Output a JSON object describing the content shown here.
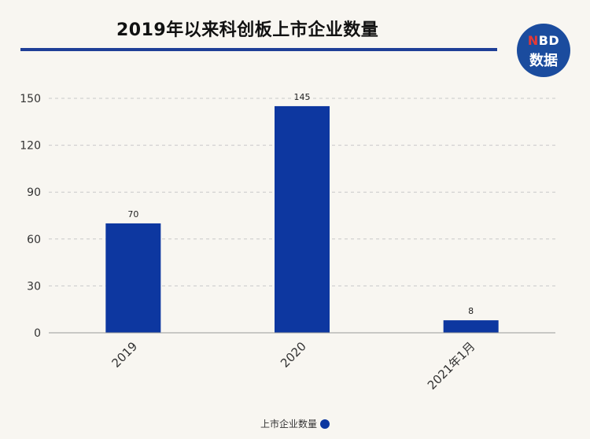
{
  "header": {
    "title": "2019年以来科创板上市企业数量",
    "logo_line1_n": "N",
    "logo_line1_rest": "BD",
    "logo_line2": "数据"
  },
  "colors": {
    "bar": "#0d37a0",
    "title_rule": "#1f3f97",
    "background": "#f8f6f1"
  },
  "chart_data": {
    "type": "bar",
    "categories": [
      "2019",
      "2020",
      "2021年1月"
    ],
    "series": [
      {
        "name": "上市企业数量",
        "values": [
          70,
          145,
          8
        ]
      }
    ],
    "yticks": [
      0,
      30,
      60,
      90,
      120,
      150
    ],
    "ylim": [
      0,
      150
    ],
    "grid": true,
    "legend": "bottom"
  }
}
